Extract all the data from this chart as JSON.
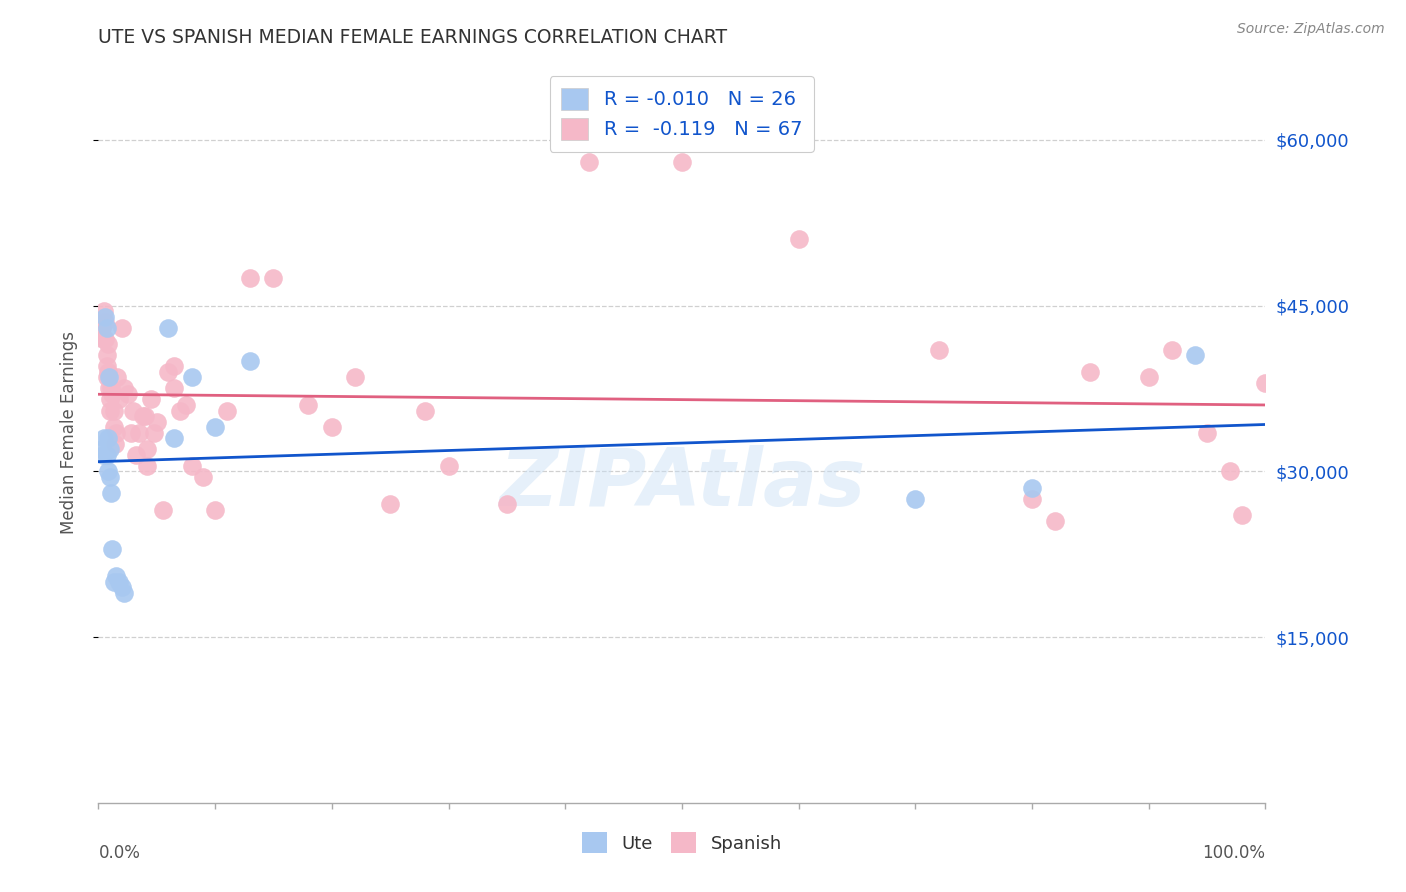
{
  "title": "UTE VS SPANISH MEDIAN FEMALE EARNINGS CORRELATION CHART",
  "source": "Source: ZipAtlas.com",
  "ylabel": "Median Female Earnings",
  "ytick_values": [
    60000,
    45000,
    30000,
    15000
  ],
  "ymin": 0,
  "ymax": 67000,
  "xmin": 0.0,
  "xmax": 1.0,
  "watermark": "ZIPAtlas",
  "ute_color": "#a8c8f0",
  "spanish_color": "#f5b8c8",
  "ute_line_color": "#1155cc",
  "spanish_line_color": "#e06080",
  "ute_R": -0.01,
  "ute_N": 26,
  "spanish_R": -0.119,
  "spanish_N": 67,
  "ute_x": [
    0.003,
    0.004,
    0.005,
    0.006,
    0.007,
    0.007,
    0.008,
    0.008,
    0.009,
    0.01,
    0.01,
    0.011,
    0.012,
    0.013,
    0.015,
    0.018,
    0.02,
    0.022,
    0.06,
    0.065,
    0.08,
    0.1,
    0.13,
    0.7,
    0.8,
    0.94
  ],
  "ute_y": [
    32000,
    31500,
    33000,
    44000,
    43000,
    31500,
    33000,
    30000,
    38500,
    32000,
    29500,
    28000,
    23000,
    20000,
    20500,
    20000,
    19500,
    19000,
    43000,
    33000,
    38500,
    34000,
    40000,
    27500,
    28500,
    40500
  ],
  "spanish_x": [
    0.003,
    0.004,
    0.005,
    0.006,
    0.006,
    0.007,
    0.007,
    0.007,
    0.008,
    0.008,
    0.009,
    0.01,
    0.01,
    0.011,
    0.012,
    0.013,
    0.013,
    0.014,
    0.015,
    0.016,
    0.018,
    0.02,
    0.022,
    0.025,
    0.028,
    0.03,
    0.032,
    0.035,
    0.038,
    0.04,
    0.042,
    0.042,
    0.045,
    0.048,
    0.05,
    0.055,
    0.06,
    0.065,
    0.065,
    0.07,
    0.075,
    0.08,
    0.09,
    0.1,
    0.11,
    0.13,
    0.15,
    0.18,
    0.2,
    0.22,
    0.25,
    0.28,
    0.3,
    0.35,
    0.42,
    0.5,
    0.6,
    0.72,
    0.8,
    0.82,
    0.85,
    0.9,
    0.92,
    0.95,
    0.97,
    0.98,
    1.0
  ],
  "spanish_y": [
    43000,
    42000,
    44500,
    43500,
    42000,
    40500,
    39500,
    38500,
    39000,
    41500,
    37500,
    36500,
    35500,
    37500,
    37000,
    35500,
    34000,
    32500,
    33500,
    38500,
    36500,
    43000,
    37500,
    37000,
    33500,
    35500,
    31500,
    33500,
    35000,
    35000,
    30500,
    32000,
    36500,
    33500,
    34500,
    26500,
    39000,
    37500,
    39500,
    35500,
    36000,
    30500,
    29500,
    26500,
    35500,
    47500,
    47500,
    36000,
    34000,
    38500,
    27000,
    35500,
    30500,
    27000,
    58000,
    58000,
    51000,
    41000,
    27500,
    25500,
    39000,
    38500,
    41000,
    33500,
    30000,
    26000,
    38000
  ],
  "background_color": "#ffffff",
  "grid_color": "#d0d0d0",
  "title_color": "#333333",
  "right_tick_color": "#1155cc"
}
